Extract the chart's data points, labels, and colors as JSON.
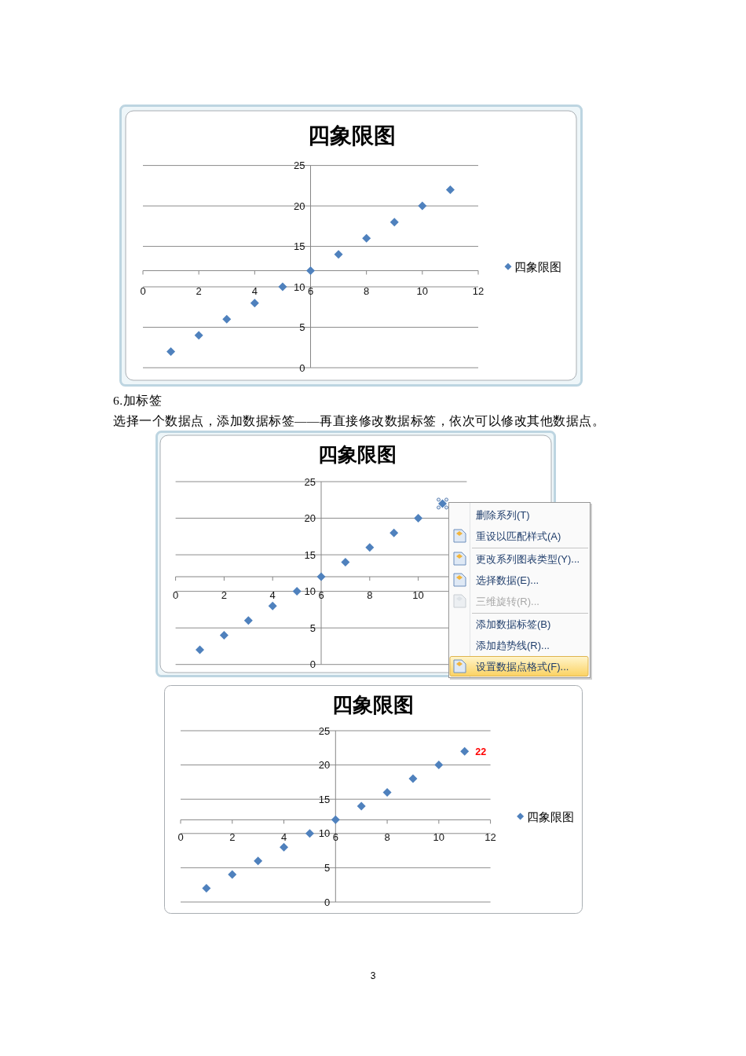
{
  "chart_data": [
    {
      "type": "scatter",
      "title": "四象限图",
      "x": [
        1,
        2,
        3,
        4,
        5,
        6,
        7,
        8,
        9,
        10,
        11
      ],
      "series": [
        {
          "name": "四象限图",
          "color": "#4f81bd",
          "values": [
            2,
            4,
            6,
            8,
            10,
            12,
            14,
            16,
            18,
            20,
            22
          ]
        }
      ],
      "xlim": [
        0,
        12
      ],
      "xticks": [
        0,
        2,
        4,
        6,
        8,
        10,
        12
      ],
      "ylim": [
        0,
        25
      ],
      "yticks": [
        0,
        5,
        10,
        15,
        20,
        25
      ],
      "grid": "y",
      "legend": "right",
      "marker": "diamond",
      "annotations": [
        "6.加标签",
        "选择一个数据点，添加数据标签——再直接修改数据标签，依次可以修改其他数据点。"
      ]
    },
    {
      "type": "scatter",
      "title": "四象限图",
      "x": [
        1,
        2,
        3,
        4,
        5,
        6,
        7,
        8,
        9,
        10,
        11
      ],
      "series": [
        {
          "color": "#4f81bd",
          "values": [
            2,
            4,
            6,
            8,
            10,
            12,
            14,
            16,
            18,
            20,
            22
          ]
        }
      ],
      "xlim": [
        0,
        12
      ],
      "xticks": [
        0,
        2,
        4,
        6,
        8,
        10
      ],
      "ylim": [
        0,
        25
      ],
      "yticks": [
        0,
        5,
        10,
        15,
        20,
        25
      ],
      "grid": "y",
      "marker": "diamond",
      "annotations": [
        "删除系列(T)",
        "重设以匹配样式(A)",
        "更改系列图表类型(Y)...",
        "选择数据(E)...",
        "三维旋转(R)...",
        "添加数据标签(B)",
        "添加趋势线(R)...",
        "设置数据点格式(F)..."
      ]
    },
    {
      "type": "scatter",
      "title": "四象限图",
      "x": [
        1,
        2,
        3,
        4,
        5,
        6,
        7,
        8,
        9,
        10,
        11
      ],
      "series": [
        {
          "name": "四象限图",
          "color": "#4f81bd",
          "values": [
            2,
            4,
            6,
            8,
            10,
            12,
            14,
            16,
            18,
            20,
            22
          ],
          "value_labels": [
            null,
            null,
            null,
            null,
            null,
            null,
            null,
            null,
            null,
            null,
            "22"
          ]
        }
      ],
      "xlim": [
        0,
        12
      ],
      "xticks": [
        0,
        2,
        4,
        6,
        8,
        10,
        12
      ],
      "ylim": [
        0,
        25
      ],
      "yticks": [
        0,
        5,
        10,
        15,
        20,
        25
      ],
      "grid": "y",
      "legend": "right",
      "marker": "diamond",
      "annotations": [
        "3"
      ]
    }
  ]
}
